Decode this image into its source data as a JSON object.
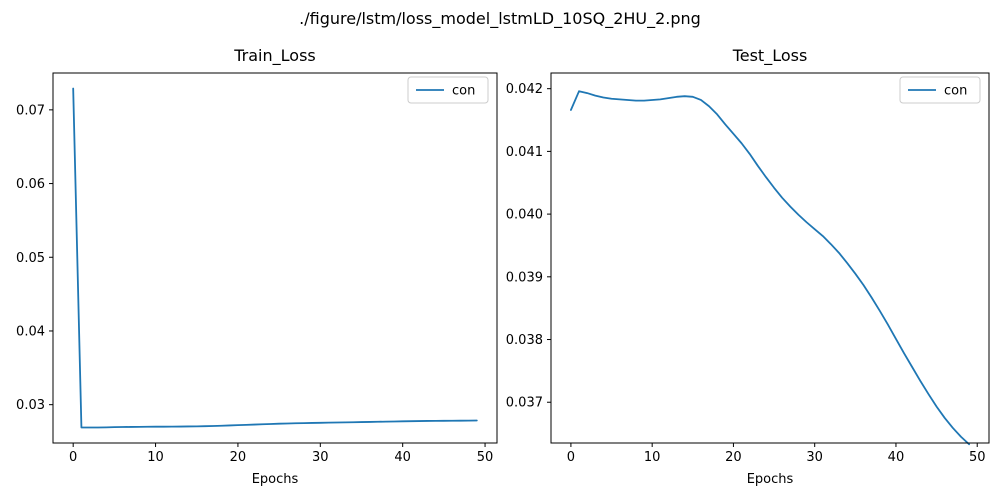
{
  "figure": {
    "suptitle": "./figure/lstm/loss_model_lstmLD_10SQ_2HU_2.png"
  },
  "chart_data": [
    {
      "type": "line",
      "title": "Train_Loss",
      "xlabel": "Epochs",
      "ylabel": "",
      "xlim": [
        -2.45,
        51.45
      ],
      "ylim": [
        0.0248,
        0.075
      ],
      "xticks": [
        0,
        10,
        20,
        30,
        40,
        50
      ],
      "yticks": [
        0.03,
        0.04,
        0.05,
        0.06,
        0.07
      ],
      "ytick_labels": [
        "0.03",
        "0.04",
        "0.05",
        "0.06",
        "0.07"
      ],
      "legend": {
        "position": "top-right"
      },
      "colors": {
        "series": "#1f77b4"
      },
      "series": [
        {
          "name": "con",
          "x": [
            0,
            1,
            2,
            3,
            4,
            5,
            6,
            7,
            8,
            9,
            10,
            11,
            12,
            13,
            14,
            15,
            16,
            17,
            18,
            19,
            20,
            21,
            22,
            23,
            24,
            25,
            26,
            27,
            28,
            29,
            30,
            31,
            32,
            33,
            34,
            35,
            36,
            37,
            38,
            39,
            40,
            41,
            42,
            43,
            44,
            45,
            46,
            47,
            48,
            49
          ],
          "y": [
            0.0729,
            0.0269,
            0.0269,
            0.0269,
            0.02692,
            0.02695,
            0.02697,
            0.02698,
            0.02699,
            0.027,
            0.02701,
            0.02701,
            0.02702,
            0.02703,
            0.02705,
            0.02706,
            0.02708,
            0.02711,
            0.02714,
            0.02718,
            0.02722,
            0.02726,
            0.0273,
            0.02734,
            0.02738,
            0.02742,
            0.02745,
            0.02748,
            0.0275,
            0.02752,
            0.02754,
            0.02756,
            0.02758,
            0.0276,
            0.02762,
            0.02764,
            0.02766,
            0.02768,
            0.0277,
            0.02772,
            0.02774,
            0.02776,
            0.02778,
            0.02779,
            0.0278,
            0.02781,
            0.02782,
            0.02783,
            0.02784,
            0.02785
          ]
        }
      ]
    },
    {
      "type": "line",
      "title": "Test_Loss",
      "xlabel": "Epochs",
      "ylabel": "",
      "xlim": [
        -2.45,
        51.45
      ],
      "ylim": [
        0.03635,
        0.04225
      ],
      "xticks": [
        0,
        10,
        20,
        30,
        40,
        50
      ],
      "yticks": [
        0.037,
        0.038,
        0.039,
        0.04,
        0.041,
        0.042
      ],
      "ytick_labels": [
        "0.037",
        "0.038",
        "0.039",
        "0.040",
        "0.041",
        "0.042"
      ],
      "legend": {
        "position": "top-right"
      },
      "colors": {
        "series": "#1f77b4"
      },
      "series": [
        {
          "name": "con",
          "x": [
            0,
            1,
            2,
            3,
            4,
            5,
            6,
            7,
            8,
            9,
            10,
            11,
            12,
            13,
            14,
            15,
            16,
            17,
            18,
            19,
            20,
            21,
            22,
            23,
            24,
            25,
            26,
            27,
            28,
            29,
            30,
            31,
            32,
            33,
            34,
            35,
            36,
            37,
            38,
            39,
            40,
            41,
            42,
            43,
            44,
            45,
            46,
            47,
            48,
            49
          ],
          "y": [
            0.04166,
            0.04196,
            0.04193,
            0.04189,
            0.04186,
            0.04184,
            0.04183,
            0.04182,
            0.04181,
            0.04181,
            0.04182,
            0.04183,
            0.04185,
            0.04187,
            0.04188,
            0.04187,
            0.04182,
            0.04172,
            0.04159,
            0.04143,
            0.04128,
            0.04113,
            0.04096,
            0.04077,
            0.04059,
            0.04042,
            0.04026,
            0.04012,
            0.03999,
            0.03987,
            0.03976,
            0.03965,
            0.03952,
            0.03938,
            0.03922,
            0.03905,
            0.03887,
            0.03867,
            0.03846,
            0.03824,
            0.03801,
            0.03778,
            0.03756,
            0.03734,
            0.03713,
            0.03693,
            0.03675,
            0.03659,
            0.03645,
            0.03633
          ]
        }
      ]
    }
  ]
}
